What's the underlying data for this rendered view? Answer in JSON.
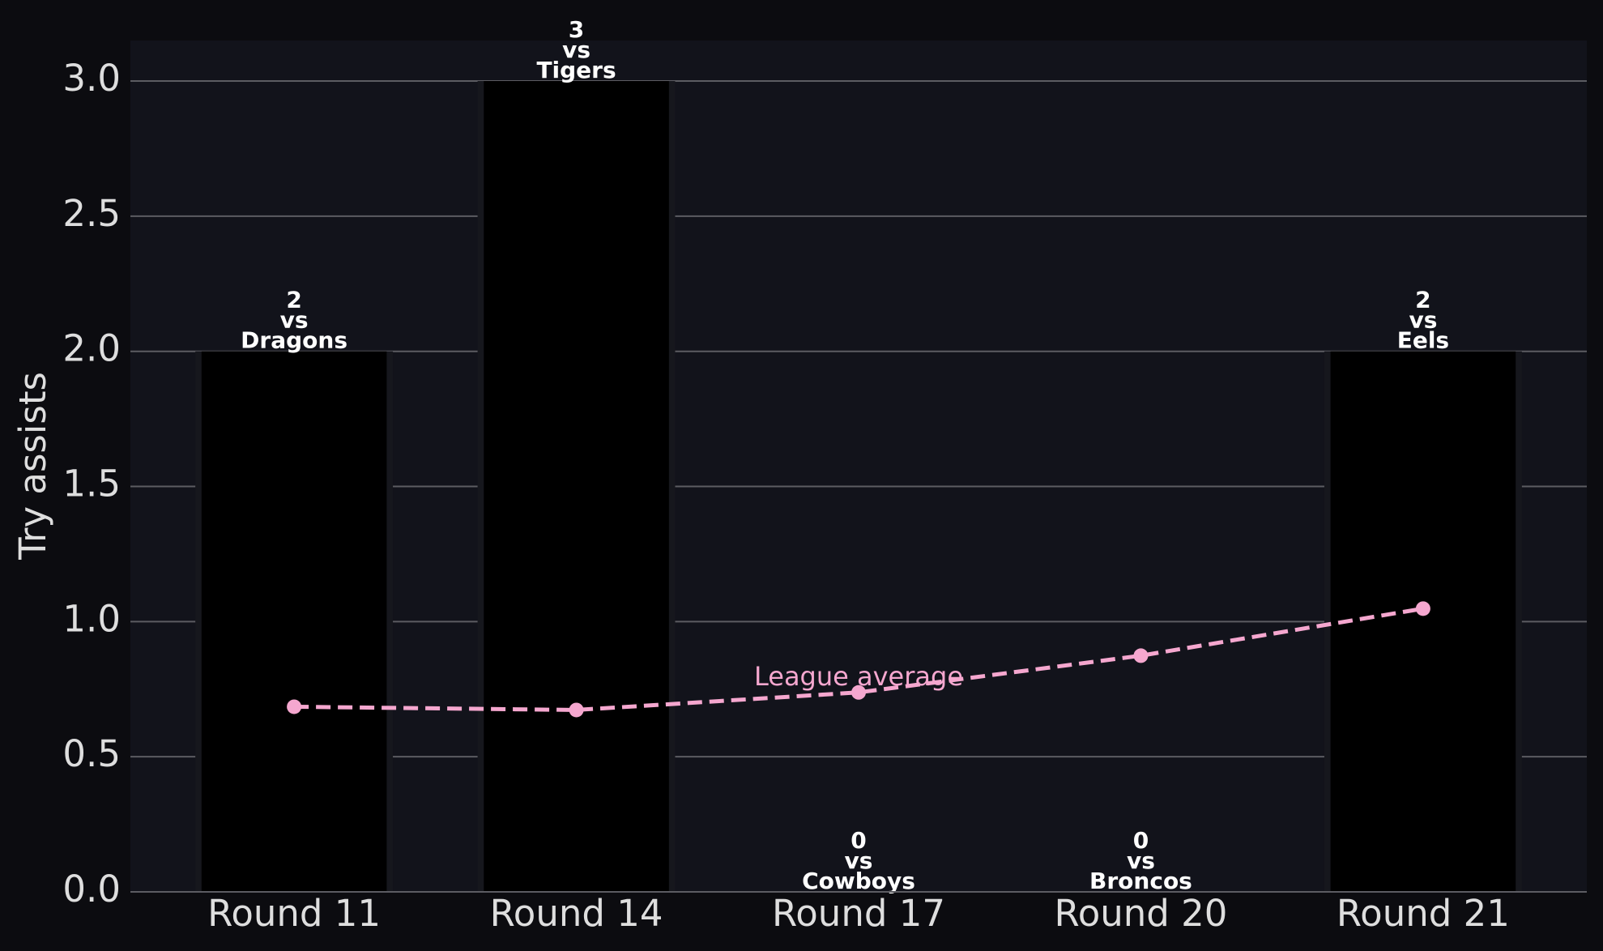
{
  "chart_data": {
    "type": "bar",
    "y_label": "Try assists",
    "categories": [
      "Round 11",
      "Round 14",
      "Round 17",
      "Round 20",
      "Round 21"
    ],
    "values": [
      2,
      3,
      0,
      0,
      2
    ],
    "value_labels": [
      "2\nvs\nDragons",
      "3\nvs\nTigers",
      "0\nvs\nCowboys",
      "0\nvs\nBroncos",
      "2\nvs\nEels"
    ],
    "color": "#000000",
    "lines": [
      {
        "name": "League average",
        "color": "#f5a7cf",
        "dashed": true,
        "values": [
          0.685,
          0.673,
          0.738,
          0.874,
          1.048
        ]
      }
    ],
    "ylim": [
      0,
      3.15
    ],
    "yticks": [
      {
        "value": 0,
        "label": "0.0"
      },
      {
        "value": 0.5,
        "label": "0.5"
      },
      {
        "value": 1,
        "label": "1.0"
      },
      {
        "value": 1.5,
        "label": "1.5"
      },
      {
        "value": 2,
        "label": "2.0"
      },
      {
        "value": 2.5,
        "label": "2.5"
      },
      {
        "value": 3,
        "label": "3.0"
      }
    ],
    "grid": true
  }
}
